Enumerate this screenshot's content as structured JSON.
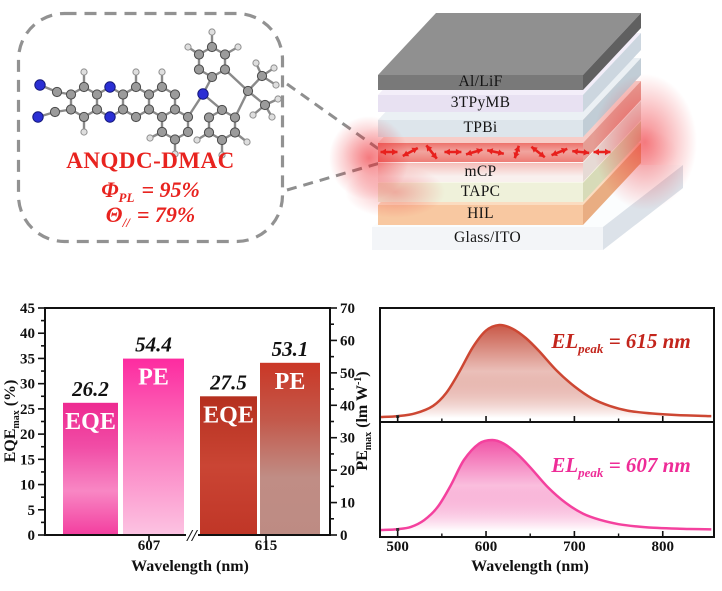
{
  "molecule_panel": {
    "name": "ANQDC-DMAC",
    "text_color": "#e8231f",
    "lines": [
      {
        "sym": "Φ",
        "sub": "PL",
        "rest": "= 95%"
      },
      {
        "sym": "Θ",
        "sub": "//",
        "rest": "= 79%"
      }
    ]
  },
  "device_stack": {
    "glow_color": "#ed1c24",
    "arrow_color": "#e8201d",
    "layers": [
      {
        "label": "Al/LiF",
        "front": "#797979",
        "top": "#909090",
        "side": "#606060"
      },
      {
        "label": "3TPyMB",
        "front": "#e8e1f2",
        "top": "#f3eef9",
        "side": "#ccd6df"
      },
      {
        "label": "TPBi",
        "front": "#dde5eb",
        "top": "#ebf0f4",
        "side": "#c1cdd6"
      },
      {
        "label": "",
        "front": "#f2b4ae",
        "top": "#f7cdc8",
        "side": "#e59d94",
        "emissive": true
      },
      {
        "label": "mCP",
        "front": "#f9f0ee",
        "top": "#fdf7f6",
        "side": "#e6dad5"
      },
      {
        "label": "TAPC",
        "front": "#eff1da",
        "top": "#f7f8e9",
        "side": "#d7dbb8"
      },
      {
        "label": "HIL",
        "front": "#f8c8a1",
        "top": "#fbdcc0",
        "side": "#e9ad82"
      },
      {
        "label": "Glass/ITO",
        "front": "#f3f5f8",
        "top": "#fbfdfe",
        "side": "#dce2e9",
        "base": true
      }
    ]
  },
  "chart_data": [
    {
      "type": "bar",
      "xlabel": "Wavelength (nm)",
      "x_break": "//",
      "left_axis": {
        "label_main": "EQE",
        "label_sub": "max",
        "label_unit": " (%)",
        "min": 0,
        "max": 45,
        "major": 5,
        "minor": 2.5
      },
      "right_axis": {
        "label_main": "PE",
        "label_sub": "max",
        "label_unit_pre": " (lm W",
        "label_sup": "-1",
        "label_unit_post": ")",
        "min": 0,
        "max": 70,
        "major": 10,
        "minor": 5
      },
      "groups": [
        {
          "category": "607",
          "bars": [
            {
              "name": "EQE",
              "value": 26.2,
              "value_label": "26.2",
              "axis": "left",
              "style": "eqe607"
            },
            {
              "name": "PE",
              "value": 54.4,
              "value_label": "54.4",
              "axis": "right",
              "style": "pe607"
            }
          ]
        },
        {
          "category": "615",
          "bars": [
            {
              "name": "EQE",
              "value": 27.5,
              "value_label": "27.5",
              "axis": "left",
              "style": "eqe615"
            },
            {
              "name": "PE",
              "value": 53.1,
              "value_label": "53.1",
              "axis": "right",
              "style": "pe615"
            }
          ]
        }
      ],
      "styles": {
        "eqe607": [
          "#ee2a91",
          "#f14da6",
          "#f887c4",
          "#f33e9f"
        ],
        "pe607": [
          "#fd2ba0",
          "#fb7cc0",
          "#fcc3e2"
        ],
        "eqe615": [
          "#b5301f",
          "#ca4534",
          "#c03627"
        ],
        "pe615": [
          "#ca3726",
          "#c3594b",
          "#c08d85",
          "#bd8b83"
        ]
      }
    },
    {
      "type": "area",
      "name": "EL spectrum (red device)",
      "annotation_main": "EL",
      "annotation_sub": "peak",
      "annotation_rest": " = 615 nm",
      "peak_nm": 615,
      "xlabel": "Wavelength (nm)",
      "xlim": [
        480,
        858
      ],
      "xticks": [
        500,
        600,
        700,
        800
      ],
      "minor_xticks": [
        550,
        650,
        750
      ],
      "x": [
        480,
        500,
        520,
        540,
        555,
        570,
        585,
        600,
        615,
        630,
        645,
        660,
        680,
        700,
        720,
        740,
        760,
        780,
        800,
        820,
        840,
        855
      ],
      "y": [
        0.01,
        0.02,
        0.05,
        0.13,
        0.27,
        0.5,
        0.76,
        0.94,
        1.0,
        0.96,
        0.86,
        0.72,
        0.51,
        0.34,
        0.21,
        0.13,
        0.08,
        0.055,
        0.04,
        0.03,
        0.025,
        0.02
      ],
      "line_color": "#cd4733",
      "fill_top": "#c44a38",
      "label_color": "#c3251c"
    },
    {
      "type": "area",
      "name": "EL spectrum (pink device)",
      "annotation_main": "EL",
      "annotation_sub": "peak",
      "annotation_rest": " = 607 nm",
      "peak_nm": 607,
      "xlabel": "Wavelength (nm)",
      "xlim": [
        480,
        858
      ],
      "xticks": [
        500,
        600,
        700,
        800
      ],
      "minor_xticks": [
        550,
        650,
        750
      ],
      "x": [
        480,
        500,
        515,
        530,
        545,
        560,
        575,
        592,
        607,
        620,
        635,
        650,
        670,
        690,
        710,
        730,
        750,
        770,
        790,
        810,
        830,
        855
      ],
      "y": [
        0.01,
        0.02,
        0.045,
        0.12,
        0.26,
        0.5,
        0.78,
        0.96,
        1.0,
        0.96,
        0.85,
        0.7,
        0.48,
        0.31,
        0.19,
        0.12,
        0.075,
        0.05,
        0.035,
        0.028,
        0.022,
        0.018
      ],
      "line_color": "#f4419e",
      "fill_top": "#f0459f",
      "label_color": "#ee2c97"
    }
  ]
}
